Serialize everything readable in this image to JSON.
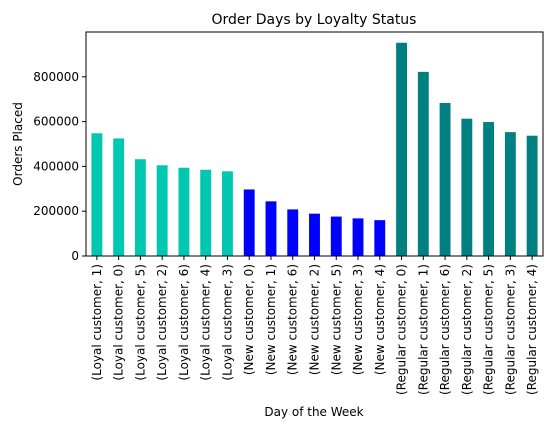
{
  "chart_data": {
    "type": "bar",
    "title": "Order Days by Loyalty Status",
    "xlabel": "Day of the Week",
    "ylabel": "Orders Placed",
    "ylim": [
      0,
      1000000
    ],
    "yticks": [
      0,
      200000,
      400000,
      600000,
      800000
    ],
    "ytick_labels": [
      "0",
      "200000",
      "400000",
      "600000",
      "800000"
    ],
    "grid": false,
    "legend": "none",
    "categories": [
      "(Loyal customer, 1)",
      "(Loyal customer, 0)",
      "(Loyal customer, 5)",
      "(Loyal customer, 2)",
      "(Loyal customer, 6)",
      "(Loyal customer, 4)",
      "(Loyal customer, 3)",
      "(New customer, 0)",
      "(New customer, 1)",
      "(New customer, 6)",
      "(New customer, 2)",
      "(New customer, 5)",
      "(New customer, 3)",
      "(New customer, 4)",
      "(Regular customer, 0)",
      "(Regular customer, 1)",
      "(Regular customer, 6)",
      "(Regular customer, 2)",
      "(Regular customer, 5)",
      "(Regular customer, 3)",
      "(Regular customer, 4)"
    ],
    "values": [
      548000,
      525000,
      432000,
      405000,
      394000,
      385000,
      378000,
      297000,
      244000,
      208000,
      189000,
      176000,
      168000,
      160000,
      952000,
      822000,
      683000,
      613000,
      598000,
      553000,
      537000
    ],
    "groups": [
      {
        "name": "Loyal customer",
        "color": "#00c8b0",
        "count": 7
      },
      {
        "name": "New customer",
        "color": "#0000ff",
        "count": 7
      },
      {
        "name": "Regular customer",
        "color": "#008080",
        "count": 7
      }
    ]
  }
}
